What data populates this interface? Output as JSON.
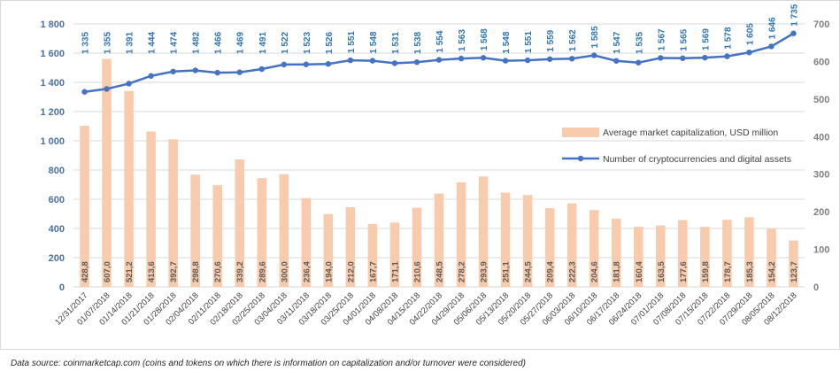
{
  "chart_data": {
    "type": "bar+line",
    "categories": [
      "12/31/2017",
      "01/07/2018",
      "01/14/2018",
      "01/21/2018",
      "01/28/2018",
      "02/04/2018",
      "02/11/2018",
      "02/18/2018",
      "02/25/2018",
      "03/04/2018",
      "03/11/2018",
      "03/18/2018",
      "03/25/2018",
      "04/01/2018",
      "04/08/2018",
      "04/15/2018",
      "04/22/2018",
      "04/29/2018",
      "05/06/2018",
      "05/13/2018",
      "05/20/2018",
      "05/27/2018",
      "06/03/2018",
      "06/10/2018",
      "06/17/2018",
      "06/24/2018",
      "07/01/2018",
      "07/08/2018",
      "07/15/2018",
      "07/22/2018",
      "07/29/2018",
      "08/05/2018",
      "08/12/2018"
    ],
    "series": [
      {
        "name": "Average market capitalization, USD million",
        "type": "bar",
        "axis": "right",
        "color": "#f8cbad",
        "values": [
          428.8,
          607.0,
          521.2,
          413.6,
          392.7,
          298.8,
          270.6,
          339.2,
          289.6,
          300.0,
          236.4,
          194.0,
          212.0,
          167.7,
          171.1,
          210.6,
          248.5,
          278.2,
          293.9,
          251.1,
          244.5,
          209.4,
          222.3,
          204.6,
          181.8,
          160.4,
          163.5,
          177.6,
          159.8,
          178.7,
          185.3,
          154.2,
          123.7
        ],
        "labels": [
          "428,8",
          "607,0",
          "521,2",
          "413,6",
          "392,7",
          "298,8",
          "270,6",
          "339,2",
          "289,6",
          "300,0",
          "236,4",
          "194,0",
          "212,0",
          "167,7",
          "171,1",
          "210,6",
          "248,5",
          "278,2",
          "293,9",
          "251,1",
          "244,5",
          "209,4",
          "222,3",
          "204,6",
          "181,8",
          "160,4",
          "163,5",
          "177,6",
          "159,8",
          "178,7",
          "185,3",
          "154,2",
          "123,7"
        ]
      },
      {
        "name": "Number of cryptocurrencies and digital assets",
        "type": "line",
        "axis": "left",
        "color": "#4472c4",
        "values": [
          1335,
          1355,
          1391,
          1444,
          1474,
          1482,
          1466,
          1469,
          1491,
          1522,
          1523,
          1526,
          1551,
          1548,
          1531,
          1538,
          1554,
          1563,
          1568,
          1548,
          1551,
          1559,
          1562,
          1585,
          1547,
          1535,
          1567,
          1565,
          1569,
          1578,
          1605,
          1646,
          1735
        ],
        "labels": [
          "1 335",
          "1 355",
          "1 391",
          "1 444",
          "1 474",
          "1 482",
          "1 466",
          "1 469",
          "1 491",
          "1 522",
          "1 523",
          "1 526",
          "1 551",
          "1 548",
          "1 531",
          "1 538",
          "1 554",
          "1 563",
          "1 568",
          "1 548",
          "1 551",
          "1 559",
          "1 562",
          "1 585",
          "1 547",
          "1 535",
          "1 567",
          "1 565",
          "1 569",
          "1 578",
          "1 605",
          "1 646",
          "1 735"
        ]
      }
    ],
    "left_axis": {
      "min": 0,
      "max": 1800,
      "ticks": [
        "0",
        "200",
        "400",
        "600",
        "800",
        "1 000",
        "1 200",
        "1 400",
        "1 600",
        "1 800"
      ],
      "tick_values": [
        0,
        200,
        400,
        600,
        800,
        1000,
        1200,
        1400,
        1600,
        1800
      ]
    },
    "right_axis": {
      "min": 0,
      "max": 700,
      "ticks": [
        "0",
        "100",
        "200",
        "300",
        "400",
        "500",
        "600",
        "700"
      ],
      "tick_values": [
        0,
        100,
        200,
        300,
        400,
        500,
        600,
        700
      ]
    },
    "grid": true,
    "legend_position": "right-middle"
  },
  "source_note": "Data source: coinmarketcap.com (coins and tokens on which there is information on capitalization and/or turnover were considered)"
}
